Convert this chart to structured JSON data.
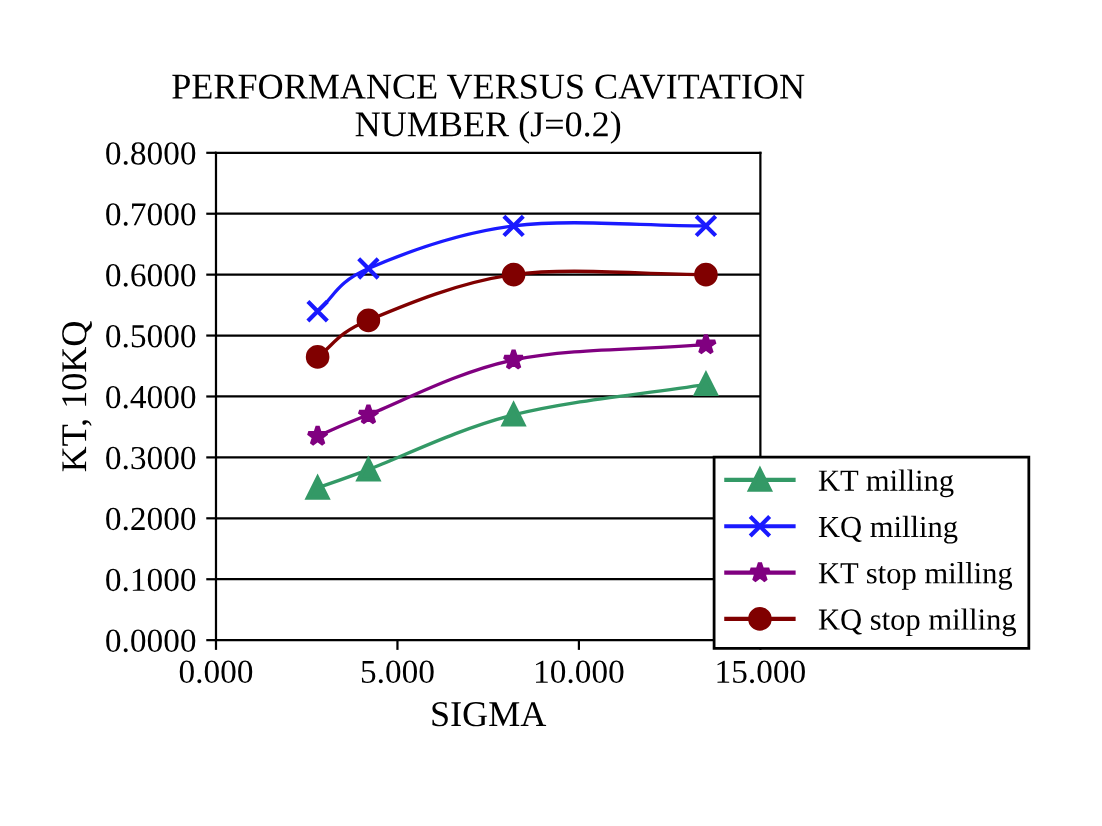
{
  "chart_data": {
    "type": "line",
    "title": "PERFORMANCE VERSUS CAVITATION\nNUMBER (J=0.2)",
    "xlabel": "SIGMA",
    "ylabel": "KT, 10KQ",
    "x": [
      2.8,
      4.2,
      8.2,
      13.5
    ],
    "series": [
      {
        "name": "KT milling",
        "color": "#339966",
        "marker": "triangle",
        "values": [
          0.25,
          0.28,
          0.37,
          0.42
        ]
      },
      {
        "name": "KQ milling",
        "color": "#1a1aff",
        "marker": "cross",
        "values": [
          0.54,
          0.61,
          0.68,
          0.68
        ]
      },
      {
        "name": "KT stop milling",
        "color": "#800080",
        "marker": "star",
        "values": [
          0.335,
          0.37,
          0.46,
          0.485
        ]
      },
      {
        "name": "KQ stop milling",
        "color": "#800000",
        "marker": "circle",
        "values": [
          0.465,
          0.525,
          0.6,
          0.6
        ]
      }
    ],
    "xlim": [
      0,
      15
    ],
    "xticks": [
      {
        "value": 0,
        "label": "0.000"
      },
      {
        "value": 5,
        "label": "5.000"
      },
      {
        "value": 10,
        "label": "10.000"
      },
      {
        "value": 15,
        "label": "15.000"
      }
    ],
    "ylim": [
      0,
      0.8
    ],
    "yticks": [
      {
        "value": 0,
        "label": "0.0000"
      },
      {
        "value": 0.1,
        "label": "0.1000"
      },
      {
        "value": 0.2,
        "label": "0.2000"
      },
      {
        "value": 0.3,
        "label": "0.3000"
      },
      {
        "value": 0.4,
        "label": "0.4000"
      },
      {
        "value": 0.5,
        "label": "0.5000"
      },
      {
        "value": 0.6,
        "label": "0.6000"
      },
      {
        "value": 0.7,
        "label": "0.7000"
      },
      {
        "value": 0.8,
        "label": "0.8000"
      }
    ],
    "grid": "y",
    "legend": "bottom right",
    "line_style": "solid"
  }
}
